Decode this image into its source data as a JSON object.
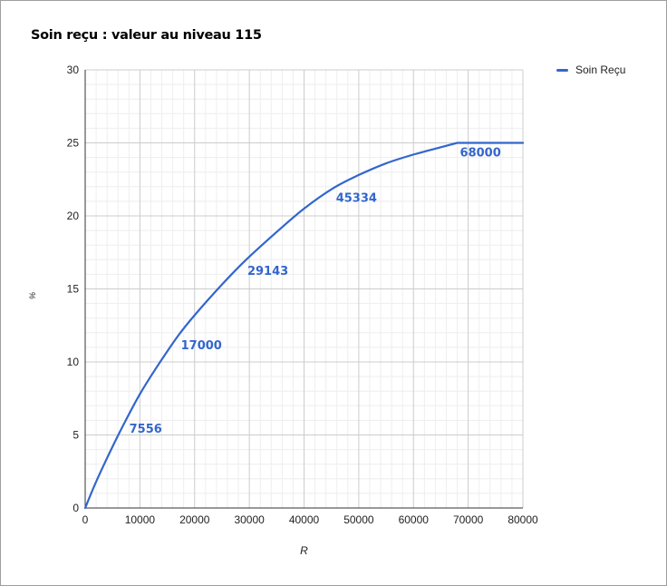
{
  "chart_data": {
    "type": "line",
    "title": "Soin reçu : valeur au niveau 115",
    "xlabel": "R",
    "ylabel": "%",
    "xlim": [
      0,
      80000
    ],
    "ylim": [
      0,
      30
    ],
    "x_ticks": [
      "0",
      "10000",
      "20000",
      "30000",
      "40000",
      "50000",
      "60000",
      "70000",
      "80000"
    ],
    "y_ticks": [
      "0",
      "5",
      "10",
      "15",
      "20",
      "25",
      "30"
    ],
    "grid": true,
    "legend_position": "top-right",
    "series": [
      {
        "name": "Soin Reçu",
        "color": "#3366cc",
        "points": [
          [
            0,
            0
          ],
          [
            2000,
            1.8
          ],
          [
            5000,
            4.2
          ],
          [
            7556,
            6.1
          ],
          [
            10000,
            7.8
          ],
          [
            13000,
            9.6
          ],
          [
            17000,
            11.8
          ],
          [
            20000,
            13.2
          ],
          [
            25000,
            15.3
          ],
          [
            29143,
            16.9
          ],
          [
            35000,
            18.9
          ],
          [
            40000,
            20.5
          ],
          [
            45334,
            21.9
          ],
          [
            50000,
            22.8
          ],
          [
            55000,
            23.6
          ],
          [
            60000,
            24.2
          ],
          [
            65000,
            24.7
          ],
          [
            68000,
            25
          ],
          [
            80000,
            25
          ]
        ]
      }
    ],
    "annotations": [
      {
        "text": "7556",
        "x": 7556,
        "y": 6.1
      },
      {
        "text": "17000",
        "x": 17000,
        "y": 11.8
      },
      {
        "text": "29143",
        "x": 29143,
        "y": 16.9
      },
      {
        "text": "45334",
        "x": 45334,
        "y": 21.9
      },
      {
        "text": "68000",
        "x": 68000,
        "y": 25
      }
    ]
  }
}
